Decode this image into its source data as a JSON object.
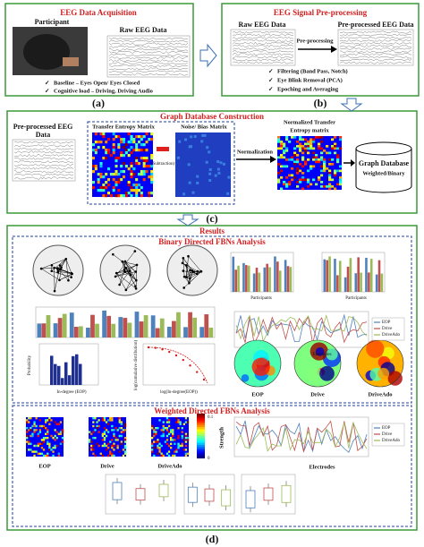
{
  "panel_a": {
    "title": "EEG Data Acquisition",
    "participant": "Participant",
    "raw": "Raw EEG Data",
    "bullets": [
      "Baseline – Eyes Open/ Eyes Closed",
      "Cognitive load – Driving, Driving Audio"
    ],
    "label": "(a)"
  },
  "panel_b": {
    "title": "EEG Signal Pre-processing",
    "raw": "Raw EEG Data",
    "arrow": "Pre-processing",
    "processed": "Pre-processed EEG Data",
    "bullets": [
      "Filtering (Band Pass, Notch)",
      "Eye Blink Removal (PCA)",
      "Epoching and Averaging"
    ],
    "label": "(b)"
  },
  "panel_c": {
    "title": "Graph Database Construction",
    "input": [
      "Pre-processed EEG",
      "Data"
    ],
    "te_matrix": "Transfer Entropy Matrix",
    "noise_matrix": "Noise/ Bias Matrix",
    "subtraction": "(Subtraction)",
    "normalization": "Normalization",
    "normalized": [
      "Normalized Transfer",
      "Entropy matrix"
    ],
    "database": [
      "Graph Database",
      "Weighted/Binary"
    ],
    "label": "(c)"
  },
  "panel_d": {
    "title": "Results",
    "label": "(d)",
    "binary": {
      "title": "Binary Directed FBNs Analysis",
      "bar_x_label": "Participants",
      "line_x_label": "Electrodes",
      "hist_y_label": "Probability",
      "hist_x_label": "In-degree (EOP)",
      "cum_y_label": "log(cumulative distribution)",
      "cum_x_label": "log(In-degree(EOP))",
      "legend": [
        "EOP",
        "Drive",
        "DriveAdo"
      ],
      "maps": [
        "EOP",
        "Drive",
        "DriveAdo"
      ]
    },
    "weighted": {
      "title": "Weighted Directed FBNs Analysis",
      "matrices": [
        "EOP",
        "Drive",
        "DriveAdo"
      ],
      "colorbar_label": "Strength",
      "colorbar_ticks": [
        "0.1",
        "0"
      ],
      "x_label": "Electrodes",
      "legend": [
        "EOP",
        "Drive",
        "DriveAdo"
      ]
    }
  }
}
